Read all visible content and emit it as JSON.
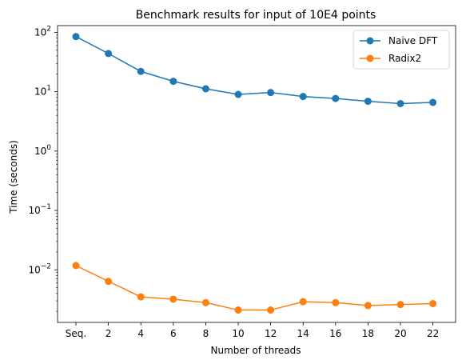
{
  "chart_data": {
    "type": "line",
    "title": "Benchmark results for input of 10E4 points",
    "xlabel": "Number of threads",
    "ylabel": "Time (seconds)",
    "yscale": "log",
    "ylim": [
      0.0013,
      130
    ],
    "categories": [
      "Seq.",
      "2",
      "4",
      "6",
      "8",
      "10",
      "12",
      "14",
      "16",
      "18",
      "20",
      "22"
    ],
    "y_ticks": [
      {
        "value": 100,
        "base": "10",
        "exp": "2"
      },
      {
        "value": 10,
        "base": "10",
        "exp": "1"
      },
      {
        "value": 1,
        "base": "10",
        "exp": "0"
      },
      {
        "value": 0.1,
        "base": "10",
        "exp": "−1"
      },
      {
        "value": 0.01,
        "base": "10",
        "exp": "−2"
      }
    ],
    "legend_position": "top-right",
    "grid": false,
    "series": [
      {
        "name": "Naive DFT",
        "color": "#1f77b4",
        "values": [
          85,
          44,
          22,
          15,
          11.2,
          9.0,
          9.7,
          8.3,
          7.7,
          6.9,
          6.3,
          6.6
        ]
      },
      {
        "name": "Radix2",
        "color": "#ff7f0e",
        "values": [
          0.0118,
          0.0064,
          0.0035,
          0.0032,
          0.0028,
          0.0021,
          0.0021,
          0.0029,
          0.0028,
          0.0025,
          0.0026,
          0.0027
        ]
      }
    ]
  }
}
